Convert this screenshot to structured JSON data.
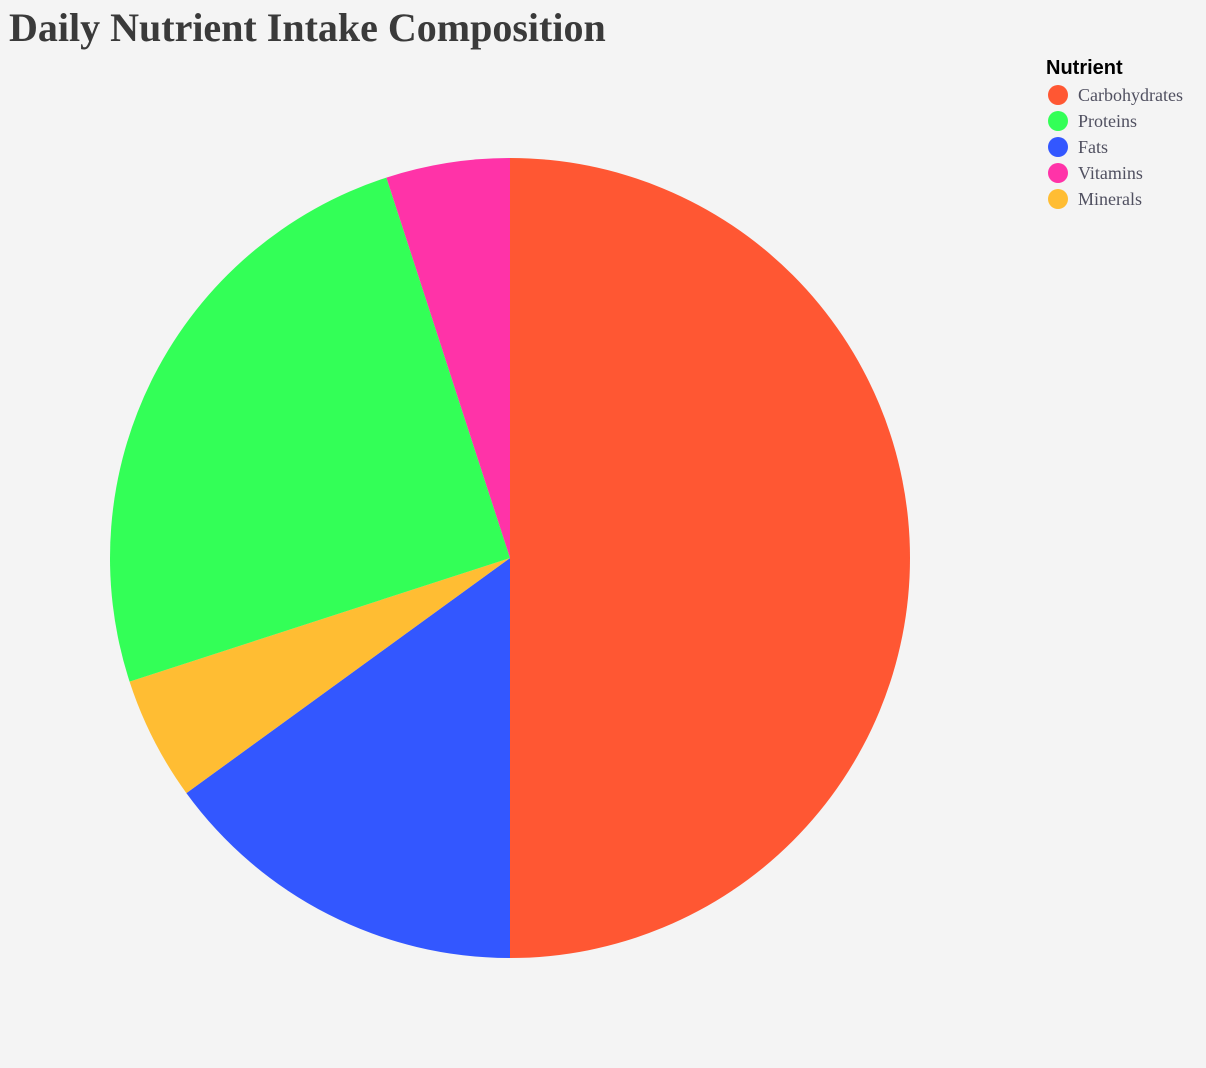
{
  "chart_data": {
    "type": "pie",
    "title": "Daily Nutrient Intake Composition",
    "legend_title": "Nutrient",
    "legend_position": "top-right",
    "slices": [
      {
        "label": "Carbohydrates",
        "value": 50,
        "color": "#ff5733"
      },
      {
        "label": "Fats",
        "value": 15,
        "color": "#3357ff"
      },
      {
        "label": "Minerals",
        "value": 5,
        "color": "#ffbd33"
      },
      {
        "label": "Proteins",
        "value": 25,
        "color": "#33ff57"
      },
      {
        "label": "Vitamins",
        "value": 5,
        "color": "#ff33a8"
      }
    ],
    "legend": [
      {
        "label": "Carbohydrates",
        "color": "#ff5733"
      },
      {
        "label": "Proteins",
        "color": "#33ff57"
      },
      {
        "label": "Fats",
        "color": "#3357ff"
      },
      {
        "label": "Vitamins",
        "color": "#ff33a8"
      },
      {
        "label": "Minerals",
        "color": "#ffbd33"
      }
    ]
  }
}
